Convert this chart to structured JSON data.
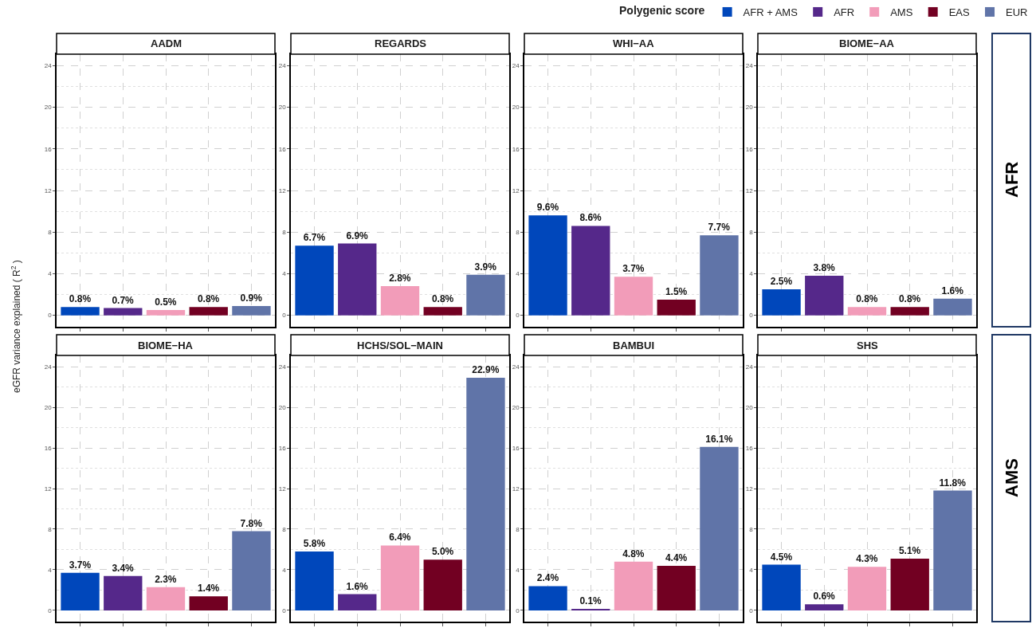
{
  "chart_data": [
    {
      "type": "bar",
      "title": "AADM",
      "ylabel": "eGFR variance explained ( R$^{2}$ )",
      "categories": [
        null
      ],
      "legend_title": "Polygenic score",
      "legend": "top right",
      "ylim": [
        -1.1,
        25.1
      ],
      "yticks": [
        0,
        4,
        8,
        12,
        16,
        20,
        24
      ],
      "grid": true,
      "series": [
        {
          "name": "AFR + AMS",
          "color": "#0047bb",
          "values": [
            0.8
          ],
          "value_labels": [
            "0.8%"
          ]
        },
        {
          "name": "AFR",
          "color": "#55288a",
          "values": [
            0.7
          ],
          "value_labels": [
            "0.7%"
          ]
        },
        {
          "name": "AMS",
          "color": "#f29cb9",
          "values": [
            0.5
          ],
          "value_labels": [
            "0.5%"
          ]
        },
        {
          "name": "EAS",
          "color": "#720022",
          "values": [
            0.8
          ],
          "value_labels": [
            "0.8%"
          ]
        },
        {
          "name": "EUR",
          "color": "#6074a8",
          "values": [
            0.9
          ],
          "value_labels": [
            "0.9%"
          ]
        }
      ]
    },
    {
      "type": "bar",
      "title": "REGARDS",
      "categories": [
        null,
        null,
        null,
        null,
        null
      ],
      "ylim": [
        -1.1,
        25.1
      ],
      "yticks": [
        0,
        4,
        8,
        12,
        16,
        20,
        24
      ],
      "grid": true,
      "values": [
        6.7,
        6.9,
        2.8,
        0.8,
        3.9
      ],
      "value_labels": [
        "6.7%",
        "6.9%",
        "2.8%",
        "0.8%",
        "3.9%"
      ],
      "colors": [
        "#0047bb",
        "#55288a",
        "#f29cb9",
        "#720022",
        "#6074a8"
      ]
    },
    {
      "type": "bar",
      "title": "WHI−AA",
      "categories": [
        null,
        null,
        null,
        null,
        null
      ],
      "ylim": [
        -1.1,
        25.1
      ],
      "yticks": [
        0,
        4,
        8,
        12,
        16,
        20,
        24
      ],
      "grid": true,
      "values": [
        9.6,
        8.6,
        3.7,
        1.5,
        7.7
      ],
      "value_labels": [
        "9.6%",
        "8.6%",
        "3.7%",
        "1.5%",
        "7.7%"
      ],
      "colors": [
        "#0047bb",
        "#55288a",
        "#f29cb9",
        "#720022",
        "#6074a8"
      ]
    },
    {
      "type": "bar",
      "title": "BIOME−AA",
      "annotations": [
        "AFR"
      ],
      "categories": [
        null,
        null,
        null,
        null,
        null
      ],
      "ylim": [
        -1.1,
        25.1
      ],
      "yticks": [
        0,
        4,
        8,
        12,
        16,
        20,
        24
      ],
      "grid": true,
      "values": [
        2.5,
        3.8,
        0.8,
        0.8,
        1.6
      ],
      "value_labels": [
        "2.5%",
        "3.8%",
        "0.8%",
        "0.8%",
        "1.6%"
      ],
      "colors": [
        "#0047bb",
        "#55288a",
        "#f29cb9",
        "#720022",
        "#6074a8"
      ]
    },
    {
      "type": "bar",
      "title": "BIOME−HA",
      "categories": [
        null,
        null,
        null,
        null,
        null
      ],
      "ylim": [
        -1.1,
        25.1
      ],
      "yticks": [
        0,
        4,
        8,
        12,
        16,
        20,
        24
      ],
      "grid": true,
      "values": [
        3.7,
        3.4,
        2.3,
        1.4,
        7.8
      ],
      "value_labels": [
        "3.7%",
        "3.4%",
        "2.3%",
        "1.4%",
        "7.8%"
      ],
      "colors": [
        "#0047bb",
        "#55288a",
        "#f29cb9",
        "#720022",
        "#6074a8"
      ]
    },
    {
      "type": "bar",
      "title": "HCHS/SOL−MAIN",
      "categories": [
        null,
        null,
        null,
        null,
        null
      ],
      "ylim": [
        -1.1,
        25.1
      ],
      "yticks": [
        0,
        4,
        8,
        12,
        16,
        20,
        24
      ],
      "grid": true,
      "values": [
        5.8,
        1.6,
        6.4,
        5.0,
        22.9
      ],
      "value_labels": [
        "5.8%",
        "1.6%",
        "6.4%",
        "5.0%",
        "22.9%"
      ],
      "colors": [
        "#0047bb",
        "#55288a",
        "#f29cb9",
        "#720022",
        "#6074a8"
      ]
    },
    {
      "type": "bar",
      "title": "BAMBUI",
      "categories": [
        null,
        null,
        null,
        null,
        null
      ],
      "ylim": [
        -1.1,
        25.1
      ],
      "yticks": [
        0,
        4,
        8,
        12,
        16,
        20,
        24
      ],
      "grid": true,
      "values": [
        2.4,
        0.1,
        4.8,
        4.4,
        16.1
      ],
      "value_labels": [
        "2.4%",
        "0.1%",
        "4.8%",
        "4.4%",
        "16.1%"
      ],
      "colors": [
        "#0047bb",
        "#55288a",
        "#f29cb9",
        "#720022",
        "#6074a8"
      ]
    },
    {
      "type": "bar",
      "title": "SHS",
      "annotations": [
        "AMS"
      ],
      "categories": [
        null,
        null,
        null,
        null,
        null
      ],
      "ylim": [
        -1.1,
        25.1
      ],
      "yticks": [
        0,
        4,
        8,
        12,
        16,
        20,
        24
      ],
      "grid": true,
      "values": [
        4.5,
        0.6,
        4.3,
        5.1,
        11.8
      ],
      "value_labels": [
        "4.5%",
        "0.6%",
        "4.3%",
        "5.1%",
        "11.8%"
      ],
      "colors": [
        "#0047bb",
        "#55288a",
        "#f29cb9",
        "#720022",
        "#6074a8"
      ]
    }
  ]
}
